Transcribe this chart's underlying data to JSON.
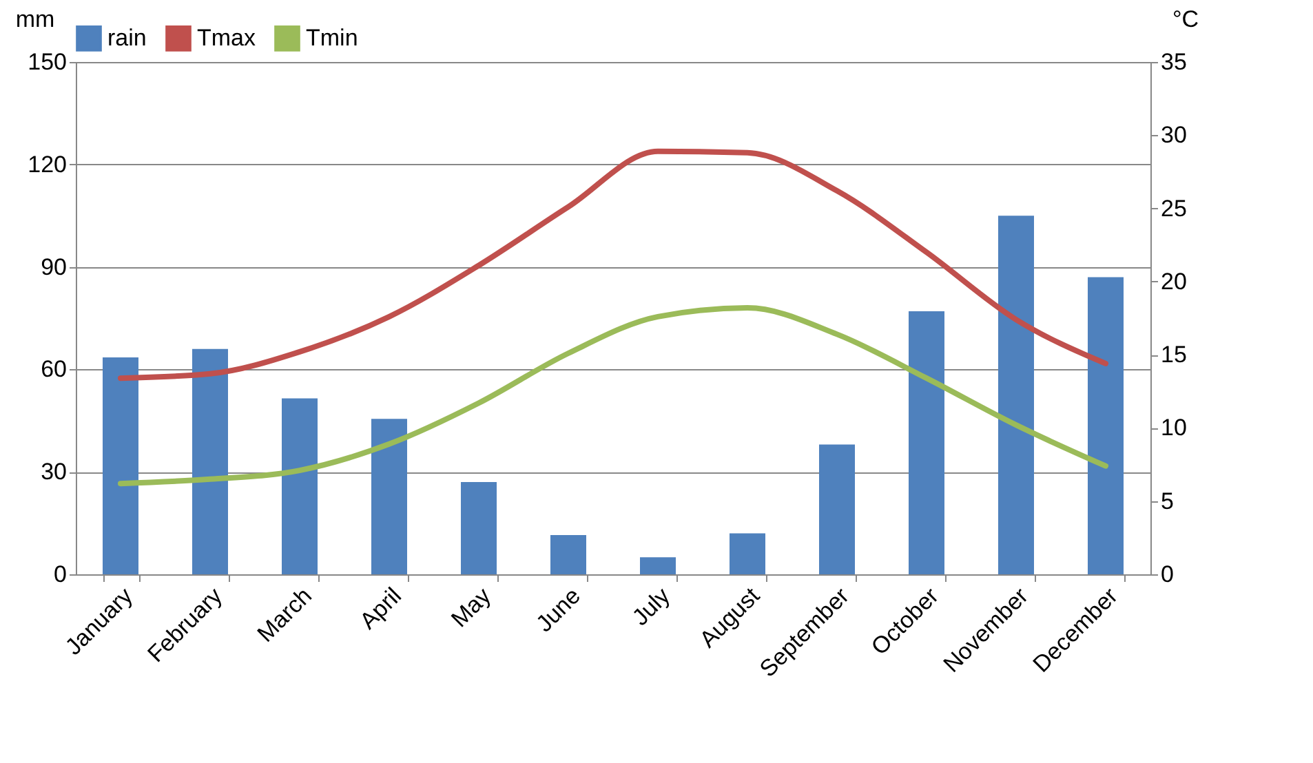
{
  "chart_data": {
    "type": "bar",
    "categories": [
      "January",
      "February",
      "March",
      "April",
      "May",
      "June",
      "July",
      "August",
      "September",
      "October",
      "November",
      "December"
    ],
    "ylabel": "mm",
    "y2label": "°C",
    "ylim": [
      0,
      150
    ],
    "yticks": [
      0,
      30,
      60,
      90,
      120,
      150
    ],
    "y2lim": [
      0,
      35
    ],
    "y2ticks": [
      0,
      5,
      10,
      15,
      20,
      25,
      30,
      35
    ],
    "grid": "y",
    "legend": "top",
    "series": [
      {
        "name": "rain",
        "type": "bar",
        "color": "#4f81bd",
        "values": [
          63.5,
          66,
          51.5,
          45.5,
          27,
          11.5,
          5,
          12,
          38,
          77,
          105,
          87
        ]
      },
      {
        "name": "Tmax",
        "type": "line",
        "axis": "y2",
        "color": "#c0504d",
        "values": [
          13.4,
          13.7,
          15.2,
          17.6,
          21.1,
          25.1,
          28.9,
          28.8,
          26.2,
          22,
          17.4,
          14.4
        ]
      },
      {
        "name": "Tmin",
        "type": "line",
        "axis": "y2",
        "color": "#9bbb59",
        "values": [
          6.2,
          6.5,
          7.1,
          8.9,
          11.7,
          15.1,
          17.6,
          18.2,
          16.4,
          13.4,
          10.2,
          7.4
        ]
      }
    ]
  }
}
